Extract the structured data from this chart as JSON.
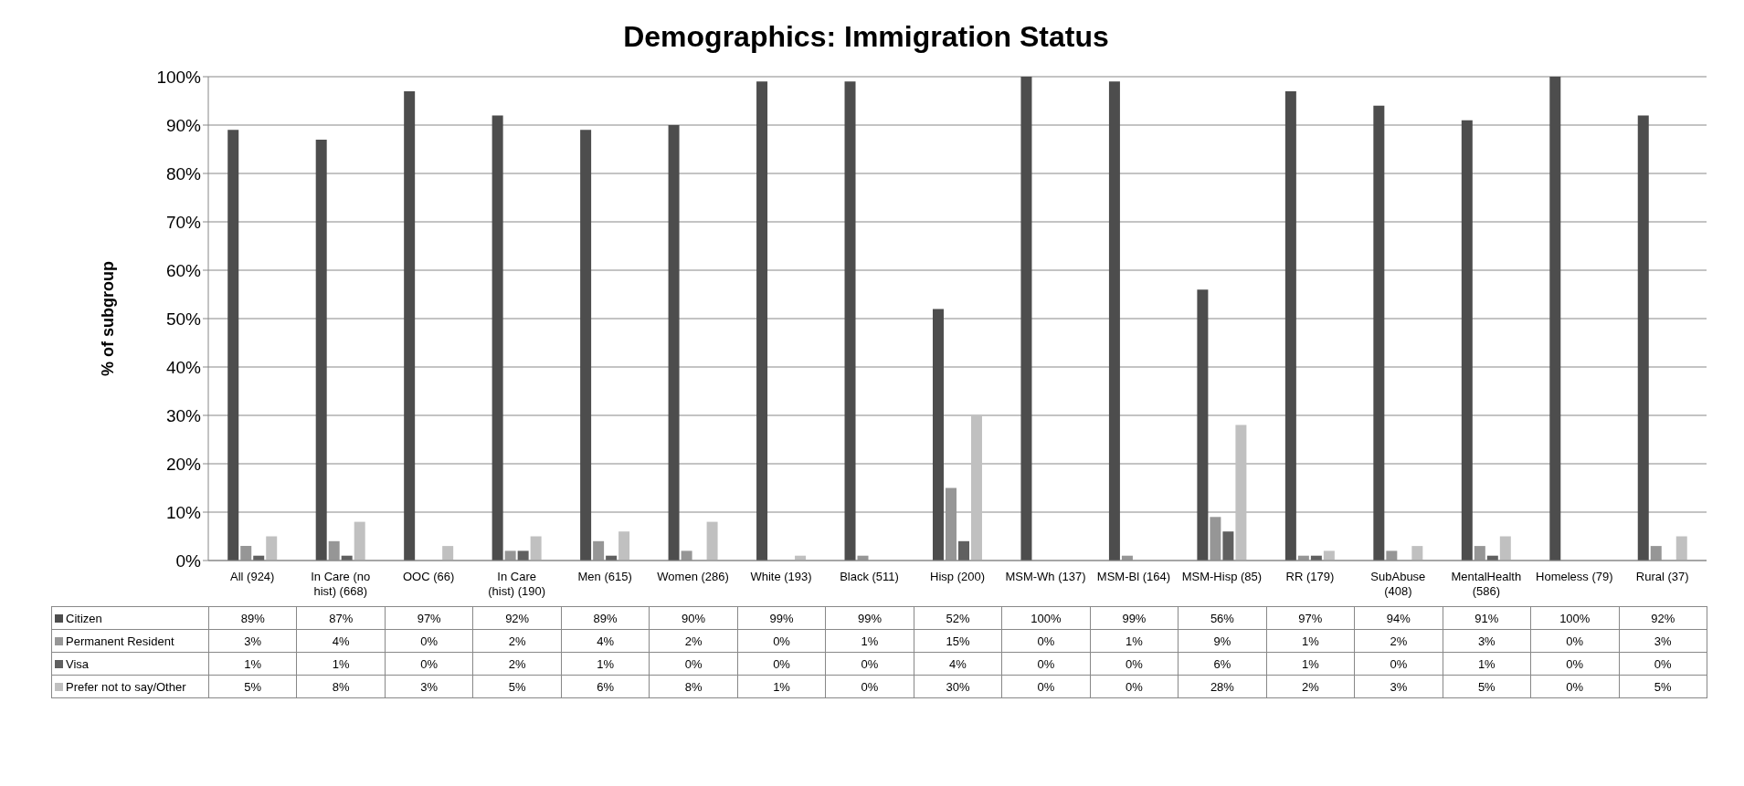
{
  "chart_data": {
    "type": "bar",
    "title": "Demographics: Immigration Status",
    "ylabel": "% of subgroup",
    "categories": [
      "All (924)",
      "In Care (no hist) (668)",
      "OOC (66)",
      "In Care (hist) (190)",
      "Men (615)",
      "Women (286)",
      "White (193)",
      "Black (511)",
      "Hisp (200)",
      "MSM-Wh (137)",
      "MSM-Bl (164)",
      "MSM-Hisp (85)",
      "RR (179)",
      "SubAbuse (408)",
      "MentalHealth (586)",
      "Homeless (79)",
      "Rural (37)"
    ],
    "series": [
      {
        "name": "Citizen",
        "color": "#4d4d4d",
        "values": [
          89,
          87,
          97,
          92,
          89,
          90,
          99,
          99,
          52,
          100,
          99,
          56,
          97,
          94,
          91,
          100,
          92
        ],
        "value_labels": [
          "89%",
          "87%",
          "97%",
          "92%",
          "89%",
          "90%",
          "99%",
          "99%",
          "52%",
          "100%",
          "99%",
          "56%",
          "97%",
          "94%",
          "91%",
          "100%",
          "92%"
        ]
      },
      {
        "name": "Permanent Resident",
        "color": "#969696",
        "values": [
          3,
          4,
          0,
          2,
          4,
          2,
          0,
          1,
          15,
          0,
          1,
          9,
          1,
          2,
          3,
          0,
          3
        ],
        "value_labels": [
          "3%",
          "4%",
          "0%",
          "2%",
          "4%",
          "2%",
          "0%",
          "1%",
          "15%",
          "0%",
          "1%",
          "9%",
          "1%",
          "2%",
          "3%",
          "0%",
          "3%"
        ]
      },
      {
        "name": "Visa",
        "color": "#606060",
        "values": [
          1,
          1,
          0,
          2,
          1,
          0,
          0,
          0,
          4,
          0,
          0,
          6,
          1,
          0,
          1,
          0,
          0
        ],
        "value_labels": [
          "1%",
          "1%",
          "0%",
          "2%",
          "1%",
          "0%",
          "0%",
          "0%",
          "4%",
          "0%",
          "0%",
          "6%",
          "1%",
          "0%",
          "1%",
          "0%",
          "0%"
        ]
      },
      {
        "name": "Prefer not to say/Other",
        "color": "#c0c0c0",
        "values": [
          5,
          8,
          3,
          5,
          6,
          8,
          1,
          0,
          30,
          0,
          0,
          28,
          2,
          3,
          5,
          0,
          5
        ],
        "value_labels": [
          "5%",
          "8%",
          "3%",
          "5%",
          "6%",
          "8%",
          "1%",
          "0%",
          "30%",
          "0%",
          "0%",
          "28%",
          "2%",
          "3%",
          "5%",
          "0%",
          "5%"
        ]
      }
    ],
    "ylim": [
      0,
      100
    ],
    "yticks": [
      {
        "value": 0,
        "label": "0%"
      },
      {
        "value": 10,
        "label": "10%"
      },
      {
        "value": 20,
        "label": "20%"
      },
      {
        "value": 30,
        "label": "30%"
      },
      {
        "value": 40,
        "label": "40%"
      },
      {
        "value": 50,
        "label": "50%"
      },
      {
        "value": 60,
        "label": "60%"
      },
      {
        "value": 70,
        "label": "70%"
      },
      {
        "value": 80,
        "label": "80%"
      },
      {
        "value": 90,
        "label": "90%"
      },
      {
        "value": 100,
        "label": "100%"
      }
    ],
    "grid": "y",
    "legend": "bottom"
  }
}
